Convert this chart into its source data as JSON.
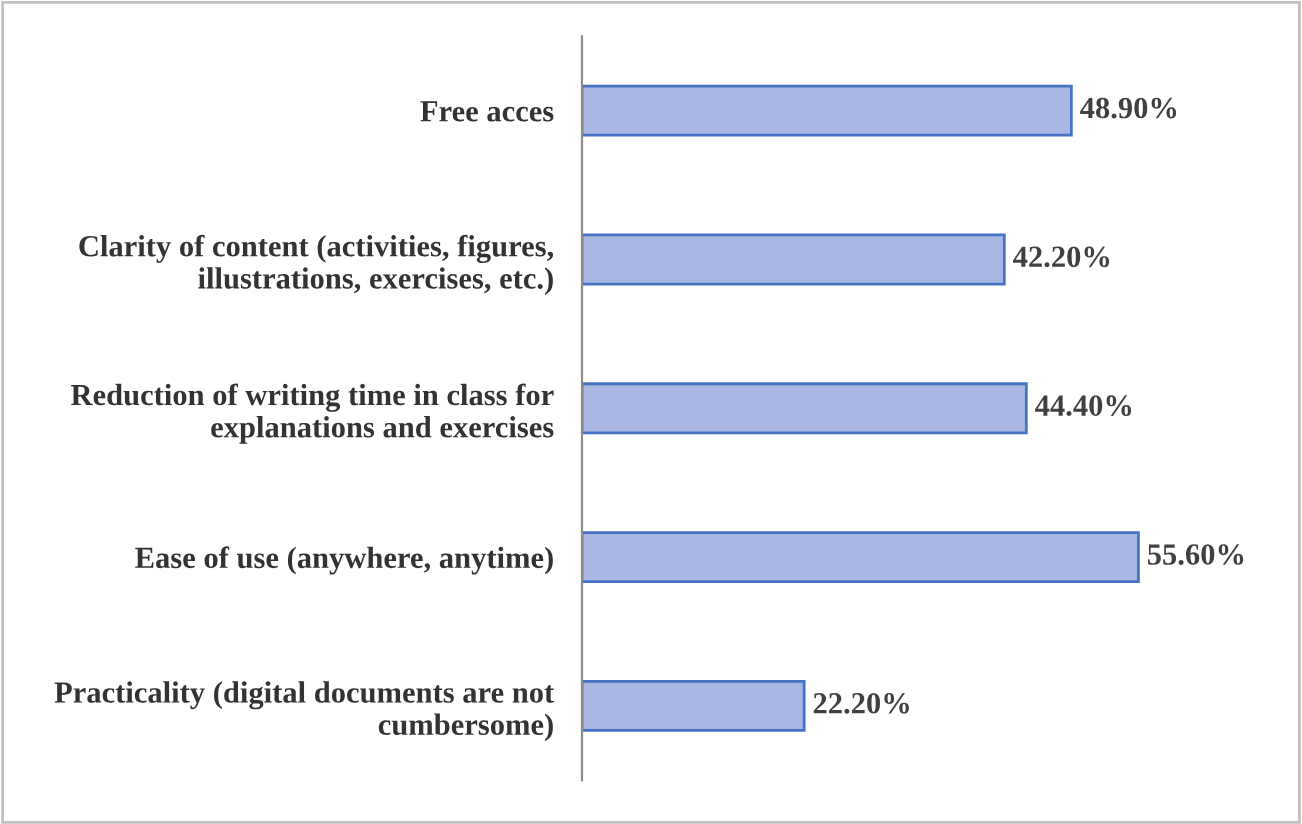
{
  "chart_data": {
    "type": "bar",
    "orientation": "horizontal",
    "categories": [
      "Free acces",
      "Clarity of content (activities, figures,\nillustrations, exercises, etc.)",
      "Reduction of writing time in class for\nexplanations and exercises",
      "Ease of use (anywhere, anytime)",
      "Practicality (digital documents are not\ncumbersome)"
    ],
    "values": [
      48.9,
      42.2,
      44.4,
      55.6,
      22.2
    ],
    "value_labels": [
      "48.90%",
      "42.20%",
      "44.40%",
      "55.60%",
      "22.20%"
    ],
    "color": "#a9b8e2",
    "grid": false,
    "legend": false,
    "tick_labels": "y"
  }
}
